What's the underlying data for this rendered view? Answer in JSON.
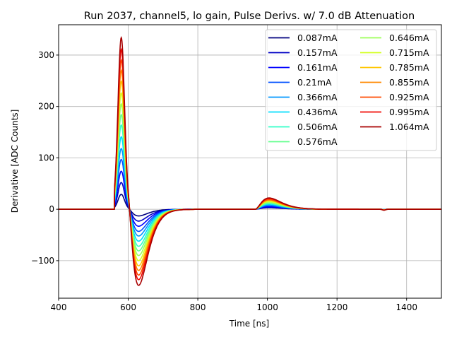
{
  "chart_data": {
    "type": "line",
    "title": "Run 2037, channel5, lo gain, Pulse Derivs. w/ 7.0 dB Attenuation",
    "xlabel": "Time [ns]",
    "ylabel": "Derivative [ADC Counts]",
    "xlim": [
      400,
      1500
    ],
    "ylim": [
      -173,
      359
    ],
    "xticks": [
      400,
      600,
      800,
      1000,
      1200,
      1400
    ],
    "yticks": [
      -100,
      0,
      100,
      200,
      300
    ],
    "ytick_labels": [
      "−100",
      "0",
      "100",
      "200",
      "300"
    ],
    "grid": true,
    "legend_placement": "top-right",
    "legend_columns": 2,
    "pulse_features": {
      "rise_start_ns": 560,
      "peak_time_ns": 580,
      "zero_cross_ns": 603,
      "trough_time_ns": 630,
      "late_bump_time_ns": 1005,
      "late_dip_time_ns": 1335
    },
    "series": [
      {
        "name": "0.087mA",
        "color": "#00007f",
        "peak": 29,
        "trough": -13,
        "late_bump": 3
      },
      {
        "name": "0.157mA",
        "color": "#0000c4",
        "peak": 52,
        "trough": -23,
        "late_bump": 4
      },
      {
        "name": "0.161mA",
        "color": "#0000ff",
        "peak": 74,
        "trough": -33,
        "late_bump": 5
      },
      {
        "name": "0.21mA",
        "color": "#0050ff",
        "peak": 97,
        "trough": -43,
        "late_bump": 7
      },
      {
        "name": "0.366mA",
        "color": "#0096ff",
        "peak": 118,
        "trough": -52,
        "late_bump": 8
      },
      {
        "name": "0.436mA",
        "color": "#00dcfe",
        "peak": 141,
        "trough": -62,
        "late_bump": 10
      },
      {
        "name": "0.506mA",
        "color": "#30ffc7",
        "peak": 164,
        "trough": -72,
        "late_bump": 11
      },
      {
        "name": "0.576mA",
        "color": "#66ff90",
        "peak": 184,
        "trough": -81,
        "late_bump": 12
      },
      {
        "name": "0.646mA",
        "color": "#9dff5a",
        "peak": 205,
        "trough": -90,
        "late_bump": 14
      },
      {
        "name": "0.715mA",
        "color": "#d4ff23",
        "peak": 226,
        "trough": -100,
        "late_bump": 15
      },
      {
        "name": "0.785mA",
        "color": "#ffc600",
        "peak": 249,
        "trough": -110,
        "late_bump": 17
      },
      {
        "name": "0.855mA",
        "color": "#ff8900",
        "peak": 270,
        "trough": -119,
        "late_bump": 18
      },
      {
        "name": "0.925mA",
        "color": "#ff4a00",
        "peak": 290,
        "trough": -128,
        "late_bump": 19
      },
      {
        "name": "0.995mA",
        "color": "#f10800",
        "peak": 311,
        "trough": -137,
        "late_bump": 21
      },
      {
        "name": "1.064mA",
        "color": "#a80000",
        "peak": 334,
        "trough": -148,
        "late_bump": 22
      }
    ]
  }
}
